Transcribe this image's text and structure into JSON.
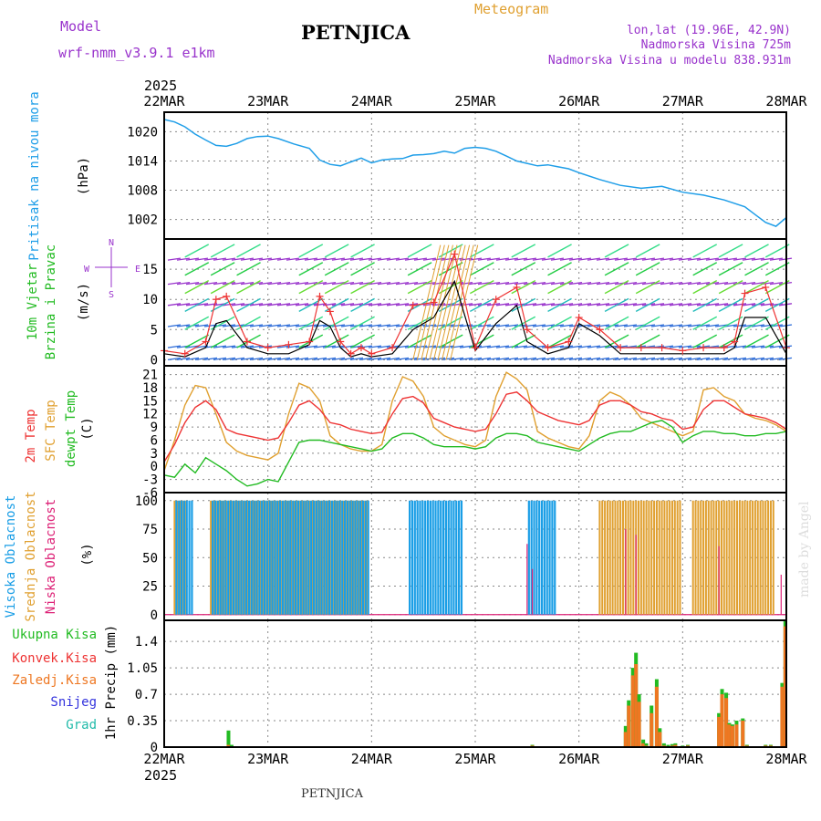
{
  "header": {
    "model_label": "Model",
    "model_name": "wrf-nmm_v3.9.1 e1km",
    "station": "PETNJICA",
    "meteogram": "Meteogram",
    "lonlat": "lon,lat (19.96E, 42.9N)",
    "altitude": "Nadmorska Visina 725m",
    "altitude_model": "Nadmorska Visina u modelu 838.931m",
    "footer_station": "PETNJICA",
    "watermark": "made by Angel"
  },
  "colors": {
    "pressure": "#1f9ee8",
    "wind_label": "#22bb22",
    "purple": "#9933cc",
    "temp_2m": "#ee3333",
    "temp_sfc": "#e0a030",
    "dewpt": "#22bb22",
    "cloud_high": "#1a9ee6",
    "cloud_mid": "#e0a030",
    "cloud_low": "#dd2277",
    "precip_total": "#22bb22",
    "precip_conv": "#ee3333",
    "precip_frozen": "#ee7722",
    "precip_snow": "#3333dd",
    "precip_hail": "#22bbaa",
    "grid": "#888888"
  },
  "chart_data": [
    {
      "type": "line",
      "name": "pressure",
      "ylabel_left": "Pritisak na nivou mora",
      "ylabel_right": "(hPa)",
      "x_top_year": "2025",
      "x_ticks": [
        "22MAR",
        "23MAR",
        "24MAR",
        "25MAR",
        "26MAR",
        "27MAR",
        "28MAR"
      ],
      "x_days": [
        0,
        6
      ],
      "ylim": [
        998,
        1024
      ],
      "y_ticks": [
        1002,
        1008,
        1014,
        1020
      ],
      "x": [
        0,
        0.1,
        0.2,
        0.3,
        0.4,
        0.5,
        0.6,
        0.7,
        0.8,
        0.9,
        1.0,
        1.1,
        1.25,
        1.4,
        1.5,
        1.6,
        1.7,
        1.8,
        1.9,
        2.0,
        2.1,
        2.2,
        2.3,
        2.4,
        2.5,
        2.6,
        2.7,
        2.8,
        2.9,
        3.0,
        3.1,
        3.2,
        3.3,
        3.4,
        3.5,
        3.6,
        3.7,
        3.8,
        3.9,
        4.0,
        4.2,
        4.4,
        4.6,
        4.8,
        5.0,
        5.2,
        5.4,
        5.6,
        5.7,
        5.8,
        5.9,
        6.0
      ],
      "y": [
        1022.5,
        1022.0,
        1021.0,
        1019.5,
        1018.3,
        1017.2,
        1017.0,
        1017.6,
        1018.6,
        1019.0,
        1019.1,
        1018.6,
        1017.5,
        1016.6,
        1014.2,
        1013.3,
        1013.0,
        1013.8,
        1014.6,
        1013.6,
        1014.2,
        1014.4,
        1014.5,
        1015.2,
        1015.3,
        1015.5,
        1016.0,
        1015.6,
        1016.6,
        1016.8,
        1016.6,
        1016.0,
        1015.0,
        1014.0,
        1013.5,
        1013.0,
        1013.2,
        1012.8,
        1012.4,
        1011.6,
        1010.2,
        1009.0,
        1008.4,
        1008.8,
        1007.6,
        1007.0,
        1006.0,
        1004.6,
        1003.0,
        1001.4,
        1000.6,
        1002.4
      ]
    },
    {
      "type": "line",
      "name": "wind",
      "ylabel_left_1": "10m Vjetar",
      "ylabel_left_2": "Brzina i Pravac",
      "ylabel_right": "(m/s)",
      "compass": {
        "north": "N",
        "south": "S",
        "east": "E",
        "west": "W"
      },
      "ylim": [
        -1,
        20
      ],
      "y_ticks": [
        0,
        5,
        10,
        15
      ],
      "speed_x": [
        0,
        0.2,
        0.4,
        0.5,
        0.6,
        0.8,
        1.0,
        1.2,
        1.4,
        1.5,
        1.6,
        1.7,
        1.8,
        1.9,
        2.0,
        2.2,
        2.4,
        2.6,
        2.8,
        3.0,
        3.2,
        3.4,
        3.5,
        3.7,
        3.9,
        4.0,
        4.2,
        4.4,
        4.6,
        4.8,
        5.0,
        5.2,
        5.4,
        5.5,
        5.6,
        5.8,
        6.0
      ],
      "speed": [
        1.0,
        0.5,
        2.0,
        6.0,
        6.5,
        2.0,
        1.0,
        1.0,
        2.5,
        6.5,
        5.5,
        2.0,
        0.5,
        1.0,
        0.5,
        1.0,
        5.0,
        7.0,
        13.0,
        1.5,
        6.0,
        9.0,
        3.0,
        1.0,
        2.0,
        6.0,
        4.0,
        1.0,
        1.0,
        1.0,
        1.0,
        1.0,
        1.0,
        2.0,
        7.0,
        7.0,
        1.0
      ],
      "gust": [
        1.5,
        1.0,
        3.0,
        10.0,
        10.5,
        3.0,
        2.0,
        2.5,
        3.0,
        10.5,
        8.0,
        3.0,
        1.0,
        2.0,
        1.0,
        2.0,
        9.0,
        9.5,
        17.5,
        2.0,
        10.0,
        12.0,
        5.0,
        2.0,
        3.0,
        7.0,
        5.0,
        2.0,
        2.0,
        2.0,
        1.5,
        2.0,
        2.0,
        3.0,
        11.0,
        12.0,
        2.0
      ]
    },
    {
      "type": "line",
      "name": "temperature",
      "ylabel_1": "2m Temp",
      "ylabel_2": "SFC Temp",
      "ylabel_3": "dewpt Temp",
      "ylabel_right": "(C)",
      "ylim": [
        -6,
        23
      ],
      "y_ticks": [
        -6,
        -3,
        0,
        3,
        6,
        9,
        12,
        15,
        18,
        21
      ],
      "x": [
        0,
        0.1,
        0.2,
        0.3,
        0.4,
        0.5,
        0.6,
        0.7,
        0.8,
        0.9,
        1.0,
        1.1,
        1.2,
        1.3,
        1.4,
        1.5,
        1.6,
        1.7,
        1.8,
        1.9,
        2.0,
        2.1,
        2.2,
        2.3,
        2.4,
        2.5,
        2.6,
        2.7,
        2.8,
        2.9,
        3.0,
        3.1,
        3.2,
        3.3,
        3.4,
        3.5,
        3.6,
        3.7,
        3.8,
        3.9,
        4.0,
        4.1,
        4.2,
        4.3,
        4.4,
        4.5,
        4.6,
        4.7,
        4.8,
        4.9,
        5.0,
        5.1,
        5.2,
        5.3,
        5.4,
        5.5,
        5.6,
        5.7,
        5.8,
        5.9,
        6.0
      ],
      "t2m": [
        1.0,
        5.0,
        10.0,
        13.5,
        15.0,
        13.0,
        8.5,
        7.5,
        7.0,
        6.5,
        6.0,
        6.5,
        10.0,
        14.0,
        15.0,
        13.0,
        10.0,
        9.5,
        8.5,
        8.0,
        7.5,
        7.8,
        12.0,
        15.5,
        16.0,
        14.5,
        11.0,
        10.0,
        9.0,
        8.5,
        8.0,
        8.5,
        12.0,
        16.5,
        17.0,
        15.0,
        12.5,
        11.5,
        10.5,
        10.0,
        9.5,
        10.5,
        14.0,
        15.0,
        15.0,
        14.0,
        12.5,
        12.0,
        11.0,
        10.5,
        8.5,
        9.0,
        13.0,
        15.0,
        15.0,
        13.5,
        12.0,
        11.5,
        11.0,
        10.0,
        8.5
      ],
      "tsfc": [
        -1.0,
        6.0,
        14.0,
        18.5,
        18.0,
        12.0,
        5.5,
        3.5,
        2.5,
        2.0,
        1.5,
        3.0,
        12.0,
        19.0,
        18.0,
        15.0,
        7.0,
        5.0,
        4.0,
        3.5,
        3.5,
        5.0,
        15.0,
        20.5,
        19.5,
        16.0,
        9.0,
        7.0,
        6.0,
        5.0,
        4.5,
        6.0,
        16.0,
        21.5,
        20.0,
        17.5,
        8.0,
        6.5,
        5.5,
        4.5,
        4.0,
        7.0,
        15.0,
        17.0,
        16.0,
        14.0,
        11.0,
        10.0,
        9.0,
        8.0,
        7.0,
        8.0,
        17.5,
        18.0,
        16.0,
        15.0,
        12.0,
        11.0,
        10.5,
        9.5,
        8.0
      ],
      "dewpt": [
        -2.0,
        -2.5,
        0.5,
        -1.5,
        2.0,
        0.5,
        -1.0,
        -3.0,
        -4.5,
        -4.0,
        -3.0,
        -3.5,
        1.0,
        5.5,
        6.0,
        6.0,
        5.5,
        5.0,
        4.5,
        4.0,
        3.5,
        4.0,
        6.5,
        7.5,
        7.5,
        6.5,
        5.0,
        4.5,
        4.5,
        4.5,
        4.0,
        4.5,
        6.5,
        7.5,
        7.5,
        7.0,
        5.5,
        5.0,
        4.5,
        4.0,
        3.5,
        5.0,
        6.5,
        7.5,
        8.0,
        8.0,
        9.0,
        10.0,
        10.5,
        9.0,
        5.5,
        7.0,
        8.0,
        8.0,
        7.5,
        7.5,
        7.0,
        7.0,
        7.5,
        7.5,
        8.0
      ]
    },
    {
      "type": "bar",
      "name": "cloud_cover",
      "ylabel_1": "Visoka Oblacnost",
      "ylabel_2": "Srednja Oblacnost",
      "ylabel_3": "Niska Oblacnost",
      "ylabel_right": "(%)",
      "ylim": [
        -5,
        107
      ],
      "y_ticks": [
        0,
        25,
        50,
        75,
        100
      ],
      "high_intervals": [
        [
          0.1,
          0.26
        ],
        [
          0.45,
          1.2
        ],
        [
          1.2,
          1.95
        ],
        [
          2.35,
          2.85
        ],
        [
          3.5,
          3.75
        ]
      ],
      "mid_intervals": [
        [
          0.1,
          0.2
        ],
        [
          0.45,
          1.95
        ],
        [
          4.2,
          5.0
        ],
        [
          5.1,
          5.9
        ]
      ],
      "low_spikes": [
        [
          3.5,
          62
        ],
        [
          3.55,
          40
        ],
        [
          4.45,
          75
        ],
        [
          4.55,
          70
        ],
        [
          5.35,
          60
        ],
        [
          5.95,
          35
        ]
      ]
    },
    {
      "type": "bar",
      "name": "precipitation",
      "legend": [
        "Ukupna Kisa",
        "Konvek.Kisa",
        "Zaledj.Kisa",
        "Snijeg",
        "Grad"
      ],
      "ylabel_right": "1hr Precip (mm)",
      "x_bottom_year": "2025",
      "x_ticks": [
        "22MAR",
        "23MAR",
        "24MAR",
        "25MAR",
        "26MAR",
        "27MAR",
        "28MAR"
      ],
      "ylim": [
        0,
        1.68
      ],
      "y_ticks": [
        0,
        0.35,
        0.7,
        1.05,
        1.4
      ],
      "x": [
        0.62,
        0.65,
        3.55,
        4.45,
        4.48,
        4.52,
        4.55,
        4.58,
        4.62,
        4.65,
        4.7,
        4.75,
        4.78,
        4.82,
        4.86,
        4.9,
        4.93,
        5.0,
        5.05,
        5.35,
        5.38,
        5.42,
        5.45,
        5.48,
        5.52,
        5.58,
        5.62,
        5.8,
        5.85,
        5.96,
        5.99
      ],
      "total": [
        0.22,
        0.03,
        0.03,
        0.28,
        0.62,
        1.05,
        1.25,
        0.7,
        0.1,
        0.05,
        0.55,
        0.9,
        0.25,
        0.05,
        0.03,
        0.04,
        0.05,
        0.02,
        0.03,
        0.45,
        0.77,
        0.72,
        0.32,
        0.3,
        0.35,
        0.38,
        0.03,
        0.03,
        0.03,
        0.85,
        1.68
      ],
      "convective": [
        0.03,
        0.01,
        0.02,
        0.2,
        0.55,
        0.95,
        1.1,
        0.6,
        0.05,
        0.02,
        0.45,
        0.8,
        0.2,
        0.02,
        0.01,
        0.02,
        0.03,
        0.01,
        0.02,
        0.4,
        0.7,
        0.65,
        0.3,
        0.28,
        0.3,
        0.35,
        0.02,
        0.02,
        0.02,
        0.8,
        1.6
      ]
    }
  ]
}
